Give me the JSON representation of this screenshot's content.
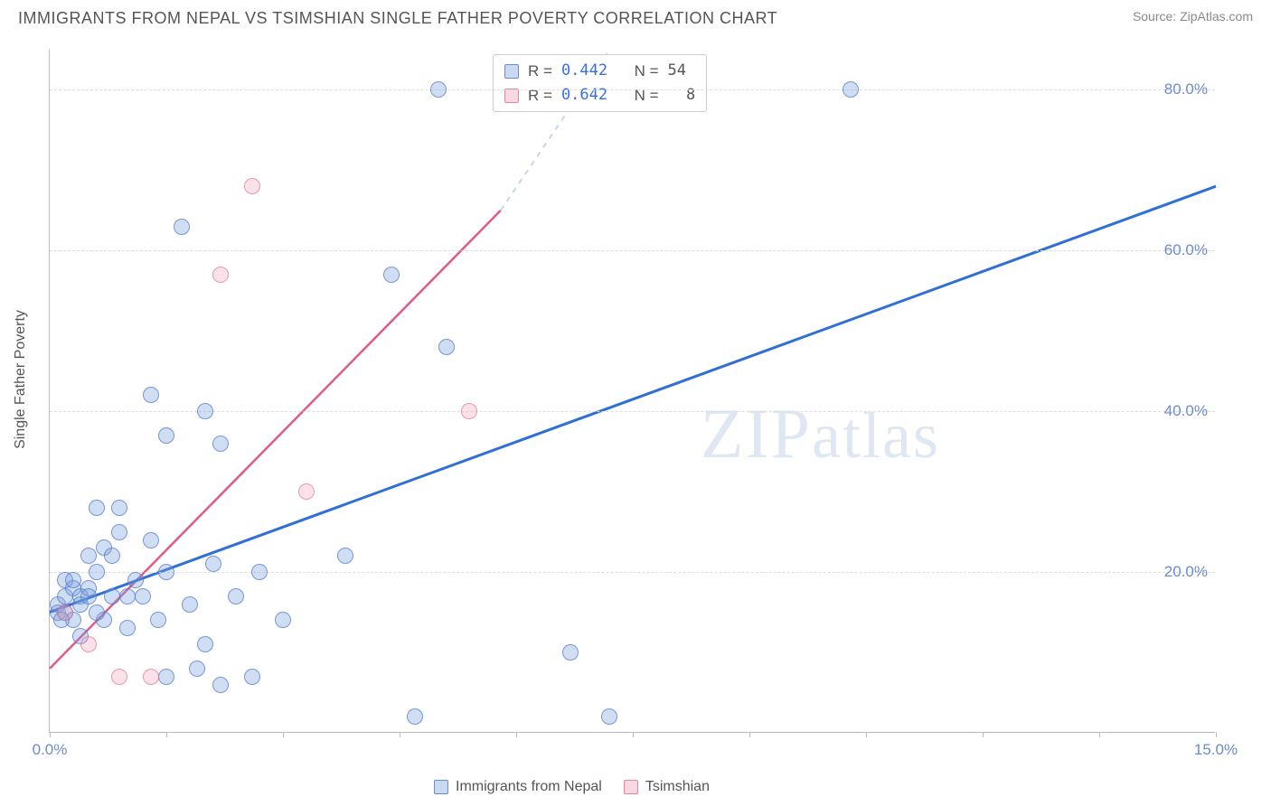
{
  "title": "IMMIGRANTS FROM NEPAL VS TSIMSHIAN SINGLE FATHER POVERTY CORRELATION CHART",
  "source_label": "Source:",
  "source_name": "ZipAtlas.com",
  "watermark_text": "ZIPatlas",
  "y_axis_label": "Single Father Poverty",
  "chart": {
    "type": "scatter",
    "xlim": [
      0,
      15
    ],
    "ylim": [
      0,
      85
    ],
    "x_ticks": [
      0,
      1.5,
      3,
      4.5,
      6,
      7.5,
      9,
      10.5,
      12,
      13.5,
      15
    ],
    "x_tick_labels": {
      "0": "0.0%",
      "15": "15.0%"
    },
    "y_gridlines": [
      20,
      40,
      60,
      80
    ],
    "y_tick_labels": {
      "20": "20.0%",
      "40": "40.0%",
      "60": "60.0%",
      "80": "80.0%"
    },
    "background_color": "#ffffff",
    "grid_color": "#dddddd",
    "axis_color": "#bbbbbb",
    "tick_label_color": "#6b8cc9",
    "series": {
      "nepal": {
        "label": "Immigrants from Nepal",
        "color_fill": "rgba(120,160,220,0.35)",
        "color_stroke": "rgba(80,120,200,0.7)",
        "marker_size": 18,
        "trend": {
          "x1": 0,
          "y1": 15,
          "x2": 15,
          "y2": 68,
          "color": "#2f6fd6",
          "width": 3
        },
        "trend_ext": {
          "x1": 5.8,
          "y1": 65,
          "x2": 7.2,
          "y2": 85,
          "color": "#c9d6ea",
          "width": 2,
          "dash": "6,6"
        },
        "R": "0.442",
        "N": "54",
        "points": [
          [
            0.1,
            15
          ],
          [
            0.1,
            16
          ],
          [
            0.2,
            17
          ],
          [
            0.2,
            19
          ],
          [
            0.2,
            15
          ],
          [
            0.3,
            18
          ],
          [
            0.3,
            14
          ],
          [
            0.3,
            19
          ],
          [
            0.4,
            17
          ],
          [
            0.4,
            16
          ],
          [
            0.5,
            18
          ],
          [
            0.5,
            22
          ],
          [
            0.5,
            17
          ],
          [
            0.6,
            20
          ],
          [
            0.6,
            28
          ],
          [
            0.7,
            14
          ],
          [
            0.7,
            23
          ],
          [
            0.8,
            17
          ],
          [
            0.8,
            22
          ],
          [
            0.9,
            25
          ],
          [
            0.9,
            28
          ],
          [
            1.0,
            13
          ],
          [
            1.0,
            17
          ],
          [
            1.1,
            19
          ],
          [
            1.2,
            17
          ],
          [
            1.3,
            24
          ],
          [
            1.3,
            42
          ],
          [
            1.4,
            14
          ],
          [
            1.5,
            20
          ],
          [
            1.5,
            37
          ],
          [
            1.5,
            7
          ],
          [
            1.7,
            63
          ],
          [
            1.8,
            16
          ],
          [
            1.9,
            8
          ],
          [
            2.0,
            11
          ],
          [
            2.0,
            40
          ],
          [
            2.1,
            21
          ],
          [
            2.2,
            6
          ],
          [
            2.2,
            36
          ],
          [
            2.4,
            17
          ],
          [
            2.6,
            7
          ],
          [
            2.7,
            20
          ],
          [
            3.0,
            14
          ],
          [
            3.8,
            22
          ],
          [
            4.4,
            57
          ],
          [
            4.7,
            2
          ],
          [
            5.0,
            80
          ],
          [
            5.1,
            48
          ],
          [
            6.7,
            10
          ],
          [
            7.2,
            2
          ],
          [
            10.3,
            80
          ],
          [
            0.4,
            12
          ],
          [
            0.6,
            15
          ],
          [
            0.15,
            14
          ]
        ]
      },
      "tsimshian": {
        "label": "Tsimshian",
        "color_fill": "rgba(240,160,180,0.3)",
        "color_stroke": "rgba(220,100,140,0.6)",
        "marker_size": 18,
        "trend": {
          "x1": 0,
          "y1": 8,
          "x2": 5.8,
          "y2": 65,
          "color": "#e05a8a",
          "width": 2.5
        },
        "R": "0.642",
        "N": "8",
        "points": [
          [
            0.2,
            15
          ],
          [
            0.5,
            11
          ],
          [
            0.9,
            7
          ],
          [
            1.3,
            7
          ],
          [
            2.2,
            57
          ],
          [
            2.6,
            68
          ],
          [
            3.3,
            30
          ],
          [
            5.4,
            40
          ]
        ]
      }
    }
  },
  "legend": {
    "series1": "Immigrants from Nepal",
    "series2": "Tsimshian"
  },
  "stats_labels": {
    "R": "R =",
    "N": "N ="
  }
}
